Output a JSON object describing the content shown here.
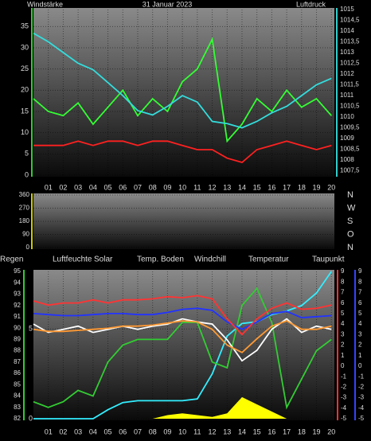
{
  "chart_data": [
    {
      "type": "line",
      "title": "31 Januar 2023",
      "ylabel": "Windstärke",
      "y2label": "Luftdruck",
      "x": [
        0,
        1,
        2,
        3,
        4,
        5,
        6,
        7,
        8,
        9,
        10,
        11,
        12,
        13,
        14,
        15,
        16,
        17,
        18,
        19,
        20
      ],
      "xlim": [
        0,
        20.2
      ],
      "xticks": [
        {
          "value": 1,
          "label": "01"
        },
        {
          "value": 2,
          "label": "02"
        },
        {
          "value": 3,
          "label": "03"
        },
        {
          "value": 4,
          "label": "04"
        },
        {
          "value": 5,
          "label": "05"
        },
        {
          "value": 6,
          "label": "06"
        },
        {
          "value": 7,
          "label": "07"
        },
        {
          "value": 8,
          "label": "08"
        },
        {
          "value": 9,
          "label": "09"
        },
        {
          "value": 10,
          "label": "10"
        },
        {
          "value": 11,
          "label": "11"
        },
        {
          "value": 12,
          "label": "12"
        },
        {
          "value": 13,
          "label": "13"
        },
        {
          "value": 14,
          "label": "14"
        },
        {
          "value": 15,
          "label": "15"
        },
        {
          "value": 16,
          "label": "16"
        },
        {
          "value": 17,
          "label": "17"
        },
        {
          "value": 18,
          "label": "18"
        },
        {
          "value": 19,
          "label": "19"
        },
        {
          "value": 20,
          "label": "20"
        }
      ],
      "ylim": [
        0,
        39
      ],
      "yticks": [
        0,
        5,
        10,
        15,
        20,
        25,
        30,
        35
      ],
      "y2lim": [
        1007.3,
        1015
      ],
      "y2ticks": [
        {
          "value": 1007.5,
          "label": "1007,5"
        },
        1008,
        {
          "value": 1008.5,
          "label": "1008,5"
        },
        1009,
        {
          "value": 1009.5,
          "label": "1009,5"
        },
        1010,
        {
          "value": 1010.5,
          "label": "1010,5"
        },
        1011,
        {
          "value": 1011.5,
          "label": "1011,5"
        },
        1012,
        {
          "value": 1012.5,
          "label": "1012,5"
        },
        1013,
        {
          "value": 1013.5,
          "label": "1013,5"
        },
        1014,
        {
          "value": 1014.5,
          "label": "1014,5"
        },
        1015
      ],
      "axis_colors": {
        "y": "#33cc33",
        "y2": "#33cccc"
      },
      "grid": true,
      "series": [
        {
          "color": "#33ff33",
          "values": [
            18,
            15,
            14,
            17,
            12,
            16,
            20,
            14,
            18,
            15,
            22,
            25,
            32,
            8,
            12,
            18,
            15,
            20,
            16,
            18,
            14
          ]
        },
        {
          "color": "#ff2020",
          "values": [
            7,
            7,
            7,
            8,
            7,
            8,
            8,
            7,
            8,
            8,
            7,
            6,
            6,
            4,
            3,
            6,
            7,
            8,
            7,
            6,
            7
          ]
        },
        {
          "color": "#33dddd",
          "axis": "y2",
          "values": [
            1013.9,
            1013.5,
            1013,
            1012.5,
            1012.2,
            1011.6,
            1011,
            1010.3,
            1010.1,
            1010.5,
            1011,
            1010.7,
            1009.8,
            1009.7,
            1009.5,
            1009.8,
            1010.2,
            1010.5,
            1011,
            1011.5,
            1011.8
          ]
        }
      ]
    },
    {
      "type": "line",
      "ylim": [
        0,
        360
      ],
      "yticks": [
        0,
        90,
        180,
        270,
        360
      ],
      "y2lim": [
        0,
        360
      ],
      "y2ticks": [
        {
          "value": 0,
          "label": "N"
        },
        {
          "value": 90,
          "label": "O"
        },
        {
          "value": 180,
          "label": "S"
        },
        {
          "value": 270,
          "label": "W"
        },
        {
          "value": 360,
          "label": "N"
        }
      ],
      "axis_colors": {
        "y": "#cccc00",
        "y2": "#ffffff"
      },
      "grid": true
    },
    {
      "type": "line",
      "x": [
        0,
        1,
        2,
        3,
        4,
        5,
        6,
        7,
        8,
        9,
        10,
        11,
        12,
        13,
        14,
        15,
        16,
        17,
        18,
        19,
        20
      ],
      "xlim": [
        0,
        20.2
      ],
      "xticks": [
        {
          "value": 1,
          "label": "01"
        },
        {
          "value": 2,
          "label": "02"
        },
        {
          "value": 3,
          "label": "03"
        },
        {
          "value": 4,
          "label": "04"
        },
        {
          "value": 5,
          "label": "05"
        },
        {
          "value": 6,
          "label": "06"
        },
        {
          "value": 7,
          "label": "07"
        },
        {
          "value": 8,
          "label": "08"
        },
        {
          "value": 9,
          "label": "09"
        },
        {
          "value": 10,
          "label": "10"
        },
        {
          "value": 11,
          "label": "11"
        },
        {
          "value": 12,
          "label": "12"
        },
        {
          "value": 13,
          "label": "13"
        },
        {
          "value": 14,
          "label": "14"
        },
        {
          "value": 15,
          "label": "15"
        },
        {
          "value": 16,
          "label": "16"
        },
        {
          "value": 17,
          "label": "17"
        },
        {
          "value": 18,
          "label": "18"
        },
        {
          "value": 19,
          "label": "19"
        },
        {
          "value": 20,
          "label": "20"
        }
      ],
      "ylim": [
        0,
        8.2
      ],
      "yticks": [
        0,
        5
      ],
      "y2lim": [
        -5,
        9
      ],
      "y2ticks": [
        -5,
        -4,
        -3,
        -2,
        -1,
        0,
        1,
        2,
        3,
        4,
        5,
        6,
        7,
        8,
        9
      ],
      "y3lim": [
        82,
        95
      ],
      "y3ticks": [
        82,
        83,
        84,
        85,
        86,
        87,
        88,
        89,
        90,
        91,
        92,
        93,
        94,
        95
      ],
      "y4lim": [
        -5,
        9
      ],
      "y4ticks": [
        -5,
        -4,
        -3,
        -2,
        -1,
        0,
        1,
        2,
        3,
        4,
        5,
        6,
        7,
        8,
        9
      ],
      "axis_colors": {
        "y": "#33cc33",
        "y2": "#ff3333",
        "y3": "#33cc33",
        "y4": "#3344ff"
      },
      "grid": true,
      "series": [
        {
          "name": "Regen",
          "color": "#33eeff",
          "values": [
            0,
            0,
            0,
            0,
            0,
            0.5,
            0.9,
            1,
            1,
            1,
            1,
            1.1,
            2.5,
            4.6,
            5.3,
            5.4,
            5.8,
            6,
            6.3,
            7,
            8.2
          ]
        },
        {
          "name": "Luftfeuchte",
          "color": "#33cc33",
          "axis": "y3",
          "values": [
            83.5,
            83,
            83.5,
            84.5,
            84,
            87,
            88.5,
            89,
            89,
            89,
            90.5,
            90.5,
            87,
            86.5,
            92,
            93.5,
            90.5,
            83,
            85.5,
            88,
            89
          ]
        },
        {
          "name": "Solar",
          "color": "#ffff00",
          "kind": "area",
          "values": [
            0,
            0,
            0,
            0,
            0,
            0,
            0,
            0,
            0,
            0.2,
            0.3,
            0.2,
            0.1,
            0.3,
            1.2,
            0.8,
            0.4,
            0,
            0,
            0,
            0
          ]
        },
        {
          "name": "Temp. Boden",
          "color": "#2233ff",
          "axis": "y4",
          "values": [
            5,
            4.9,
            4.8,
            4.8,
            4.9,
            5,
            5,
            4.9,
            4.9,
            5.1,
            5.4,
            5.5,
            5.3,
            4.2,
            3.5,
            4.2,
            5,
            5.2,
            4.6,
            4.7,
            4.8
          ]
        },
        {
          "name": "Windchill",
          "color": "#ffffff",
          "axis": "y2",
          "values": [
            4,
            3.2,
            3.5,
            3.8,
            3.2,
            3.5,
            3.8,
            3.5,
            3.8,
            4,
            4.5,
            4.2,
            4,
            2.5,
            0.5,
            1.5,
            3.5,
            4.5,
            3.2,
            3.8,
            3.5
          ]
        },
        {
          "name": "Temperatur",
          "color": "#ff3333",
          "axis": "y2",
          "values": [
            6.2,
            5.8,
            6,
            6,
            6.3,
            6,
            6.3,
            6.3,
            6.4,
            6.6,
            6.5,
            6.7,
            6.4,
            4.5,
            3,
            4.5,
            5.5,
            6,
            5.4,
            5.5,
            5.8
          ]
        },
        {
          "name": "Taupunkt",
          "color": "#ff9933",
          "axis": "y2",
          "values": [
            3.5,
            3.3,
            3.3,
            3.4,
            3.5,
            3.6,
            3.8,
            3.8,
            3.9,
            4.1,
            4.3,
            4.2,
            3.5,
            2,
            1.3,
            2.6,
            3.8,
            4.3,
            3.5,
            3.5,
            3.8
          ]
        }
      ]
    }
  ]
}
